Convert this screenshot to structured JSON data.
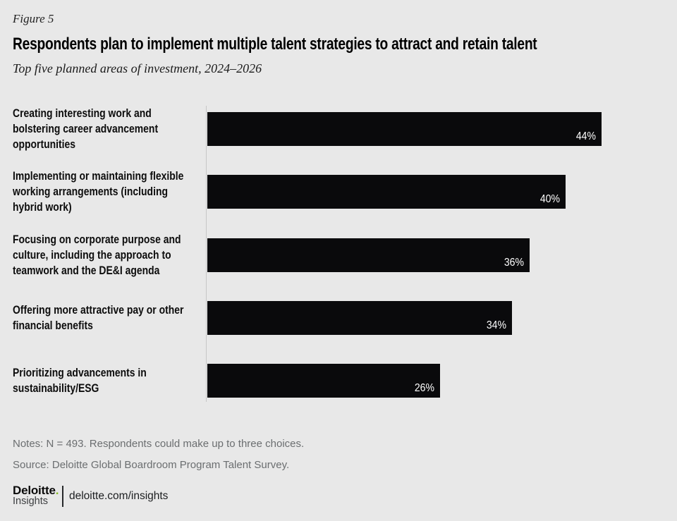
{
  "figure_label": "Figure 5",
  "title": "Respondents plan to implement multiple talent strategies to attract and retain talent",
  "subtitle": "Top five planned areas of investment, 2024–2026",
  "chart_data": {
    "type": "bar",
    "orientation": "horizontal",
    "categories": [
      "Creating interesting work and bolstering career advancement opportunities",
      "Implementing or maintaining flexible working arrangements (including hybrid work)",
      "Focusing on corporate purpose and culture, including the approach to teamwork and the DE&I agenda",
      "Offering more attractive pay or other financial benefits",
      "Prioritizing advancements in sustainability/ESG"
    ],
    "values": [
      44,
      40,
      36,
      34,
      26
    ],
    "value_labels": [
      "44%",
      "40%",
      "36%",
      "34%",
      "26%"
    ],
    "xlim": [
      0,
      50
    ],
    "grid": false,
    "legend": false,
    "value_label_position": "inside-end",
    "bar_color": "#0a0a0c",
    "value_label_color": "#ffffff"
  },
  "notes": "Notes: N = 493. Respondents could make up to three choices.",
  "source": "Source: Deloitte Global Boardroom Program Talent Survey.",
  "footer": {
    "brand": "Deloitte",
    "brand_dot": ".",
    "brand_sub": "Insights",
    "url": "deloitte.com/insights"
  },
  "colors": {
    "background": "#e8e8e8",
    "bar": "#0a0a0c",
    "axis_line": "#c6c6c6",
    "text_muted": "#6b6e70",
    "brand_green": "#86bc25"
  }
}
